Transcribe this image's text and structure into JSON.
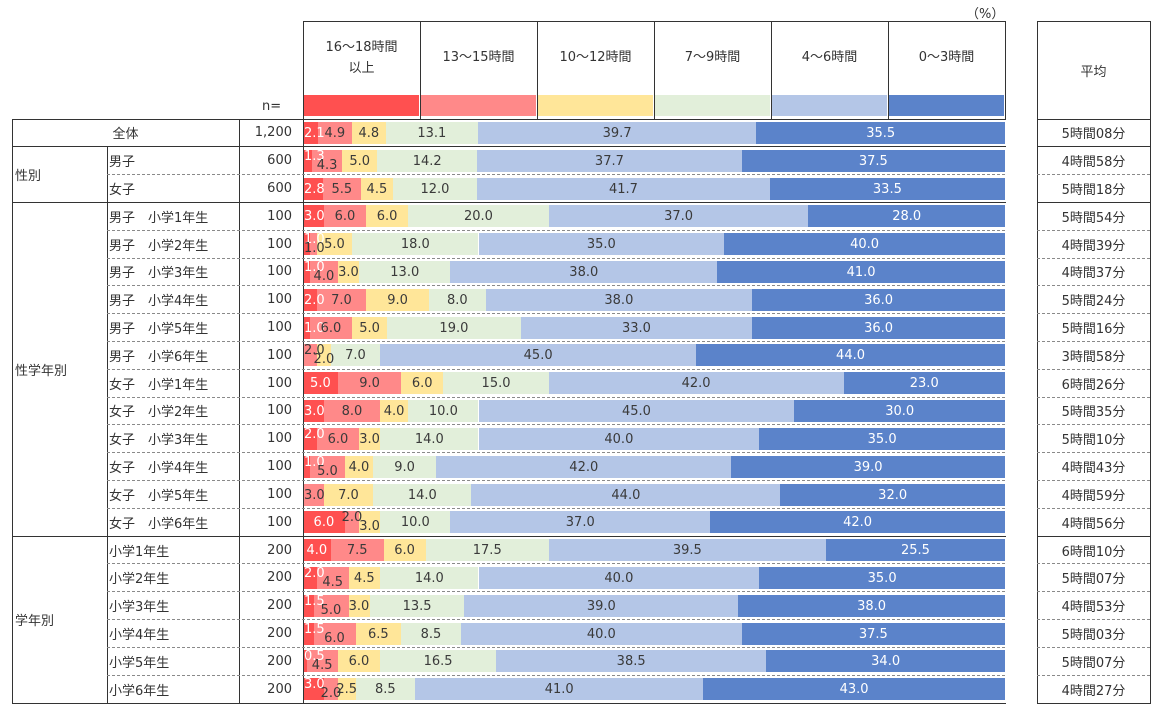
{
  "table": {
    "n_header": "n=",
    "average_header": "平均",
    "groups": [
      {
        "label": "全体",
        "rows": 1,
        "merged": true
      },
      {
        "label": "性別",
        "rows": 2,
        "merged": false
      },
      {
        "label": "性学年別",
        "rows": 12,
        "merged": false
      },
      {
        "label": "学年別",
        "rows": 6,
        "merged": false
      }
    ],
    "rows": [
      {
        "label": "全体",
        "n": "1,200",
        "average": "5時間08分"
      },
      {
        "label": "男子",
        "n": "600",
        "average": "4時間58分"
      },
      {
        "label": "女子",
        "n": "600",
        "average": "5時間18分"
      },
      {
        "label": "男子　小学1年生",
        "n": "100",
        "average": "5時間54分"
      },
      {
        "label": "男子　小学2年生",
        "n": "100",
        "average": "4時間39分"
      },
      {
        "label": "男子　小学3年生",
        "n": "100",
        "average": "4時間37分"
      },
      {
        "label": "男子　小学4年生",
        "n": "100",
        "average": "5時間24分"
      },
      {
        "label": "男子　小学5年生",
        "n": "100",
        "average": "5時間16分"
      },
      {
        "label": "男子　小学6年生",
        "n": "100",
        "average": "3時間58分"
      },
      {
        "label": "女子　小学1年生",
        "n": "100",
        "average": "6時間26分"
      },
      {
        "label": "女子　小学2年生",
        "n": "100",
        "average": "5時間35分"
      },
      {
        "label": "女子　小学3年生",
        "n": "100",
        "average": "5時間10分"
      },
      {
        "label": "女子　小学4年生",
        "n": "100",
        "average": "4時間43分"
      },
      {
        "label": "女子　小学5年生",
        "n": "100",
        "average": "4時間59分"
      },
      {
        "label": "女子　小学6年生",
        "n": "100",
        "average": "4時間56分"
      },
      {
        "label": "小学1年生",
        "n": "200",
        "average": "6時間10分"
      },
      {
        "label": "小学2年生",
        "n": "200",
        "average": "5時間07分"
      },
      {
        "label": "小学3年生",
        "n": "200",
        "average": "4時間53分"
      },
      {
        "label": "小学4年生",
        "n": "200",
        "average": "5時間03分"
      },
      {
        "label": "小学5年生",
        "n": "200",
        "average": "5時間07分"
      },
      {
        "label": "小学6年生",
        "n": "200",
        "average": "4時間27分"
      }
    ]
  },
  "chart_data": {
    "type": "bar",
    "orientation": "horizontal",
    "stacked": true,
    "normalized": true,
    "title": "",
    "unit": "（%）",
    "xlabel": "",
    "ylabel": "",
    "xlim": [
      0,
      100
    ],
    "grid": false,
    "legend": "top",
    "value_label_format": "0.0",
    "categories": [
      "全体",
      "男子",
      "女子",
      "男子　小学1年生",
      "男子　小学2年生",
      "男子　小学3年生",
      "男子　小学4年生",
      "男子　小学5年生",
      "男子　小学6年生",
      "女子　小学1年生",
      "女子　小学2年生",
      "女子　小学3年生",
      "女子　小学4年生",
      "女子　小学5年生",
      "女子　小学6年生",
      "小学1年生",
      "小学2年生",
      "小学3年生",
      "小学4年生",
      "小学5年生",
      "小学6年生"
    ],
    "series": [
      {
        "name": "16～18時間以上",
        "header_lines": [
          "16～18時間",
          "以上"
        ],
        "color": "#FF5050",
        "label_color": "#FFFFFF",
        "values": [
          2.1,
          1.3,
          2.8,
          3.0,
          1.0,
          1.0,
          2.0,
          1.0,
          0.0,
          5.0,
          3.0,
          2.0,
          1.0,
          0.0,
          6.0,
          4.0,
          2.0,
          1.5,
          1.5,
          0.5,
          3.0
        ]
      },
      {
        "name": "13～15時間",
        "header_lines": [
          "13～15時間"
        ],
        "color": "#FF8989",
        "label_color": "#3A3A3A",
        "values": [
          4.9,
          4.3,
          5.5,
          6.0,
          1.0,
          4.0,
          7.0,
          6.0,
          2.0,
          9.0,
          8.0,
          6.0,
          5.0,
          3.0,
          2.0,
          7.5,
          4.5,
          5.0,
          6.0,
          4.5,
          2.0
        ]
      },
      {
        "name": "10～12時間",
        "header_lines": [
          "10～12時間"
        ],
        "color": "#FFE699",
        "label_color": "#3A3A3A",
        "values": [
          4.8,
          5.0,
          4.5,
          6.0,
          5.0,
          3.0,
          9.0,
          5.0,
          2.0,
          6.0,
          4.0,
          3.0,
          4.0,
          7.0,
          3.0,
          6.0,
          4.5,
          3.0,
          6.5,
          6.0,
          2.5
        ]
      },
      {
        "name": "7～9時間",
        "header_lines": [
          "7～9時間"
        ],
        "color": "#E2EFDA",
        "label_color": "#3A3A3A",
        "values": [
          13.1,
          14.2,
          12.0,
          20.0,
          18.0,
          13.0,
          8.0,
          19.0,
          7.0,
          15.0,
          10.0,
          14.0,
          9.0,
          14.0,
          10.0,
          17.5,
          14.0,
          13.5,
          8.5,
          16.5,
          8.5
        ]
      },
      {
        "name": "4～6時間",
        "header_lines": [
          "4～6時間"
        ],
        "color": "#B4C6E7",
        "label_color": "#3A3A3A",
        "values": [
          39.7,
          37.7,
          41.7,
          37.0,
          35.0,
          38.0,
          38.0,
          33.0,
          45.0,
          42.0,
          45.0,
          40.0,
          42.0,
          44.0,
          37.0,
          39.5,
          40.0,
          39.0,
          40.0,
          38.5,
          41.0
        ]
      },
      {
        "name": "0～3時間",
        "header_lines": [
          "0～3時間"
        ],
        "color": "#5B83CA",
        "label_color": "#FFFFFF",
        "values": [
          35.5,
          37.5,
          33.5,
          28.0,
          40.0,
          41.0,
          36.0,
          36.0,
          44.0,
          23.0,
          30.0,
          35.0,
          39.0,
          32.0,
          42.0,
          25.5,
          35.0,
          38.0,
          37.5,
          34.0,
          43.0
        ]
      }
    ]
  }
}
